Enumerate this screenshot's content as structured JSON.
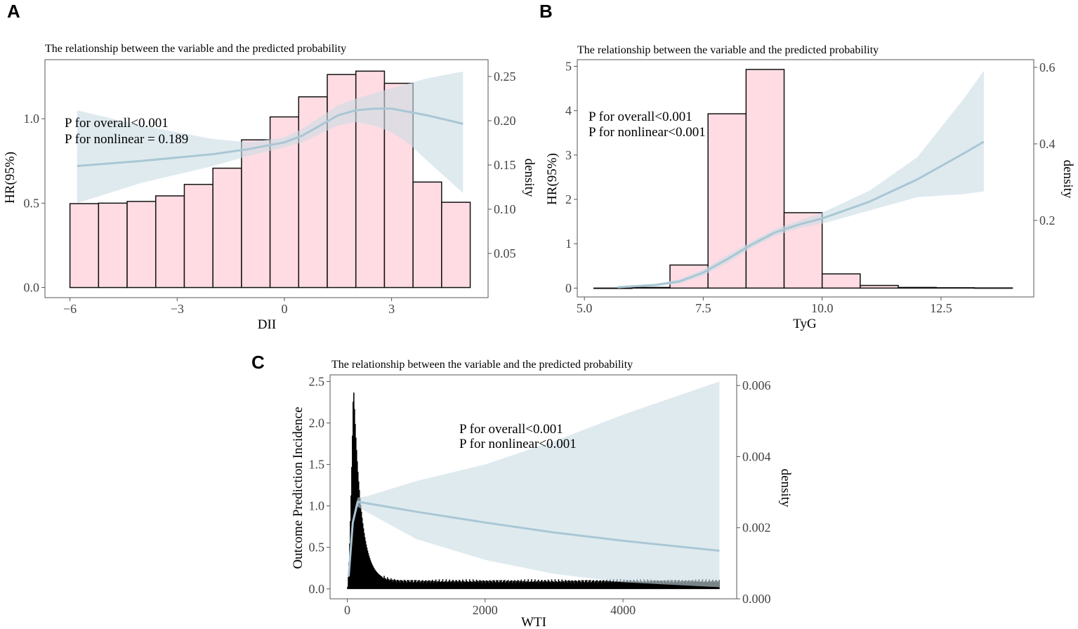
{
  "colors": {
    "bar_fill": "#ffdce3",
    "bar_stroke": "#111111",
    "band_fill": "#c9dce4",
    "line": "#a9c7d4",
    "axis": "#555555"
  },
  "chart_data": [
    {
      "panel": "A",
      "type": "bar",
      "title": "The relationship between the variable and the predicted probability",
      "xlabel": "DII",
      "ylabel": "HR(95%)",
      "y2label": "density",
      "xlim": [
        -6.7,
        5.7
      ],
      "ylim": [
        -0.06,
        1.35
      ],
      "y2lim": [
        0.0,
        0.269
      ],
      "xticks": [
        -6,
        -3,
        0,
        3
      ],
      "xtick_labels": [
        "−6",
        "−3",
        "0",
        "3"
      ],
      "yticks": [
        0.0,
        0.5,
        1.0
      ],
      "ytick_labels": [
        "0.0",
        "0.5",
        "1.0"
      ],
      "y2ticks": [
        0.05,
        0.1,
        0.15,
        0.2,
        0.25
      ],
      "y2tick_labels": [
        "0.05",
        "0.10",
        "0.15",
        "0.20",
        "0.25"
      ],
      "bars": {
        "edges": [
          -6.0,
          -5.2,
          -4.4,
          -3.6,
          -2.8,
          -2.0,
          -1.2,
          -0.4,
          0.4,
          1.2,
          2.0,
          2.8,
          3.6,
          4.4,
          5.2
        ],
        "heights": [
          0.497,
          0.5,
          0.51,
          0.543,
          0.611,
          0.707,
          0.875,
          1.011,
          1.13,
          1.262,
          1.282,
          1.21,
          0.625,
          0.505
        ]
      },
      "curve": {
        "x": [
          -5.8,
          -4,
          -2,
          -1,
          0,
          0.5,
          1,
          1.5,
          2,
          2.5,
          3,
          3.5,
          4,
          5.0
        ],
        "y": [
          0.72,
          0.75,
          0.79,
          0.82,
          0.86,
          0.9,
          0.96,
          1.02,
          1.05,
          1.06,
          1.06,
          1.04,
          1.02,
          0.97
        ],
        "lower": [
          0.5,
          0.62,
          0.72,
          0.78,
          0.83,
          0.86,
          0.91,
          0.96,
          0.98,
          0.96,
          0.92,
          0.85,
          0.75,
          0.56
        ],
        "upper": [
          1.05,
          0.96,
          0.88,
          0.86,
          0.89,
          0.94,
          1.01,
          1.08,
          1.12,
          1.15,
          1.18,
          1.21,
          1.24,
          1.28
        ]
      },
      "annotations": [
        "P for overall<0.001",
        "P for nonlinear = 0.189"
      ]
    },
    {
      "panel": "B",
      "type": "bar",
      "title": "The relationship between the variable and the predicted probability",
      "xlabel": "TyG",
      "ylabel": "HR(95%)",
      "y2label": "density",
      "xlim": [
        4.85,
        14.45
      ],
      "ylim": [
        -0.2,
        5.15
      ],
      "y2lim": [
        0.0,
        0.62
      ],
      "xticks": [
        5.0,
        7.5,
        10.0,
        12.5
      ],
      "xtick_labels": [
        "5.0",
        "7.5",
        "10.0",
        "12.5"
      ],
      "yticks": [
        0,
        1,
        2,
        3,
        4,
        5
      ],
      "ytick_labels": [
        "0",
        "1",
        "2",
        "3",
        "4",
        "5"
      ],
      "y2ticks": [
        0.2,
        0.4,
        0.6
      ],
      "y2tick_labels": [
        "0.2",
        "0.4",
        "0.6"
      ],
      "bars": {
        "edges": [
          5.2,
          6.0,
          6.8,
          7.6,
          8.4,
          9.2,
          10.0,
          10.8,
          11.6,
          12.4,
          13.2,
          14.0
        ],
        "heights": [
          0.0,
          0.015,
          0.52,
          3.93,
          4.93,
          1.7,
          0.32,
          0.06,
          0.015,
          0.008,
          0.004
        ]
      },
      "curve": {
        "x": [
          5.7,
          6.5,
          7,
          7.5,
          8,
          8.5,
          9,
          9.5,
          10,
          11,
          12,
          13,
          13.4
        ],
        "y": [
          0.02,
          0.07,
          0.15,
          0.35,
          0.65,
          0.97,
          1.25,
          1.43,
          1.57,
          1.95,
          2.45,
          3.05,
          3.3
        ],
        "lower": [
          0.005,
          0.04,
          0.1,
          0.28,
          0.56,
          0.9,
          1.17,
          1.35,
          1.45,
          1.75,
          2.05,
          2.12,
          2.18
        ],
        "upper": [
          0.04,
          0.1,
          0.2,
          0.42,
          0.74,
          1.04,
          1.33,
          1.52,
          1.7,
          2.2,
          2.95,
          4.3,
          4.9
        ]
      },
      "annotations": [
        "P for overall<0.001",
        "P for nonlinear<0.001"
      ]
    },
    {
      "panel": "C",
      "type": "bar",
      "title": "The relationship between the variable and the predicted probability",
      "xlabel": "WTI",
      "ylabel": "Outcome Prediction Incidence",
      "y2label": "density",
      "xlim": [
        -250,
        5650
      ],
      "ylim": [
        -0.12,
        2.58
      ],
      "y2lim": [
        0.0,
        0.0063
      ],
      "xticks": [
        0,
        2000,
        4000
      ],
      "xtick_labels": [
        "0",
        "2000",
        "4000"
      ],
      "yticks": [
        0.0,
        0.5,
        1.0,
        1.5,
        2.0,
        2.5
      ],
      "ytick_labels": [
        "0.0",
        "0.5",
        "1.0",
        "1.5",
        "2.0",
        "2.5"
      ],
      "y2ticks": [
        0.0,
        0.002,
        0.004,
        0.006
      ],
      "y2tick_labels": [
        "0.000",
        "0.002",
        "0.004",
        "0.006"
      ],
      "histogram": {
        "x_start": 0,
        "x_end": 5400,
        "bin_width": 10,
        "peak_x": 90,
        "peak_value": 2.47,
        "baseline": 0.09
      },
      "curve": {
        "x": [
          20,
          80,
          150,
          300,
          1000,
          2000,
          3000,
          4000,
          5400
        ],
        "y": [
          0.15,
          0.8,
          1.05,
          1.03,
          0.93,
          0.8,
          0.68,
          0.58,
          0.46
        ],
        "lower": [
          0.12,
          0.76,
          0.99,
          0.92,
          0.6,
          0.35,
          0.18,
          0.08,
          0.02
        ],
        "upper": [
          0.18,
          0.84,
          1.1,
          1.12,
          1.3,
          1.5,
          1.78,
          2.1,
          2.5
        ]
      },
      "annotations": [
        "P for overall<0.001",
        "P for nonlinear<0.001"
      ]
    }
  ]
}
